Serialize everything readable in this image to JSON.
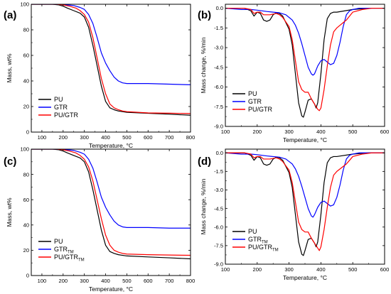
{
  "chart_data": [
    {
      "panel": "(a)",
      "type": "line",
      "xlabel": "Temperature, °C",
      "ylabel": "Mass, wt%",
      "xlim": [
        50,
        800
      ],
      "ylim": [
        0,
        100
      ],
      "xticks": [
        100,
        200,
        300,
        400,
        500,
        600,
        700,
        800
      ],
      "yticks": [
        0,
        20,
        40,
        60,
        80,
        100
      ],
      "xtick_labels": [
        "100",
        "200",
        "300",
        "400",
        "500",
        "600",
        "700",
        "800"
      ],
      "ytick_labels": [
        "0",
        "20",
        "40",
        "60",
        "80",
        "100"
      ],
      "legend_position": "bottom-left",
      "legend": [
        {
          "label": "PU",
          "sub": ""
        },
        {
          "label": "GTR",
          "sub": ""
        },
        {
          "label": "PU/GTR",
          "sub": ""
        }
      ],
      "series": [
        {
          "name": "PU",
          "color": "#000000",
          "x": [
            50,
            150,
            180,
            200,
            220,
            250,
            280,
            300,
            320,
            340,
            360,
            380,
            400,
            420,
            440,
            460,
            500,
            600,
            700,
            800
          ],
          "y": [
            100,
            100,
            99.5,
            98.5,
            97,
            95,
            93,
            90,
            82,
            68,
            52,
            36,
            24,
            19,
            17.5,
            16.5,
            15.5,
            14.7,
            14,
            13.2
          ]
        },
        {
          "name": "GTR",
          "color": "#0000ff",
          "x": [
            50,
            180,
            220,
            250,
            280,
            300,
            320,
            340,
            360,
            380,
            400,
            420,
            440,
            460,
            480,
            500,
            600,
            700,
            800
          ],
          "y": [
            100,
            100,
            99.5,
            99,
            97.5,
            96,
            92,
            85,
            74,
            62,
            54,
            48,
            43,
            40,
            38.5,
            38,
            38,
            37.5,
            37
          ]
        },
        {
          "name": "PU/GTR",
          "color": "#ff0000",
          "x": [
            50,
            170,
            200,
            230,
            260,
            280,
            300,
            320,
            340,
            360,
            380,
            400,
            420,
            440,
            460,
            480,
            500,
            600,
            700,
            800
          ],
          "y": [
            100,
            100,
            99.5,
            98.5,
            97,
            95,
            92,
            86,
            74,
            58,
            42,
            30,
            22,
            19,
            17.5,
            16.5,
            16,
            15,
            14.8,
            14.5
          ]
        }
      ]
    },
    {
      "panel": "(b)",
      "type": "line",
      "xlabel": "Temperature, °C",
      "ylabel": "Mass change, %/min",
      "xlim": [
        100,
        600
      ],
      "ylim": [
        -9.0,
        0.3
      ],
      "xticks": [
        100,
        200,
        300,
        400,
        500,
        600
      ],
      "yticks": [
        0.0,
        -1.5,
        -3.0,
        -4.5,
        -6.0,
        -7.5,
        -9.0
      ],
      "xtick_labels": [
        "100",
        "200",
        "300",
        "400",
        "500",
        "600"
      ],
      "ytick_labels": [
        "0.0",
        "-1.5",
        "-3.0",
        "-4.5",
        "-6.0",
        "-7.5",
        "-9.0"
      ],
      "legend_position": "bottom-left",
      "legend": [
        {
          "label": "PU",
          "sub": ""
        },
        {
          "label": "GTR",
          "sub": ""
        },
        {
          "label": "PU/GTR",
          "sub": ""
        }
      ],
      "series": [
        {
          "name": "PU",
          "color": "#000000",
          "x": [
            100,
            160,
            180,
            190,
            200,
            210,
            220,
            230,
            240,
            250,
            260,
            270,
            280,
            300,
            310,
            320,
            330,
            340,
            345,
            350,
            360,
            370,
            380,
            385,
            390,
            400,
            410,
            420,
            430,
            440,
            450,
            500,
            550,
            600
          ],
          "y": [
            0,
            0,
            -0.2,
            -0.6,
            -0.3,
            -0.4,
            -0.9,
            -1.0,
            -0.9,
            -0.5,
            -0.35,
            -0.4,
            -0.6,
            -1.6,
            -2.8,
            -5.0,
            -7.2,
            -8.2,
            -8.3,
            -7.9,
            -7.0,
            -6.9,
            -7.3,
            -7.6,
            -7.2,
            -5.0,
            -2.4,
            -0.8,
            -0.4,
            -0.3,
            -0.3,
            -0.1,
            0,
            0
          ]
        },
        {
          "name": "GTR",
          "color": "#0000ff",
          "x": [
            100,
            150,
            180,
            200,
            230,
            250,
            270,
            290,
            300,
            310,
            320,
            330,
            340,
            350,
            360,
            370,
            375,
            380,
            390,
            400,
            410,
            420,
            430,
            440,
            450,
            460,
            470,
            480,
            490,
            500,
            520,
            550,
            600
          ],
          "y": [
            0,
            -0.1,
            -0.1,
            -0.15,
            -0.25,
            -0.3,
            -0.35,
            -0.5,
            -0.7,
            -0.9,
            -1.3,
            -1.9,
            -2.7,
            -3.6,
            -4.5,
            -5.0,
            -5.1,
            -5.0,
            -4.4,
            -4.0,
            -3.9,
            -4.1,
            -4.3,
            -4.2,
            -3.6,
            -2.6,
            -1.4,
            -0.5,
            -0.2,
            -0.1,
            0,
            0,
            0
          ]
        },
        {
          "name": "PU/GTR",
          "color": "#ff0000",
          "x": [
            100,
            160,
            180,
            190,
            200,
            210,
            220,
            240,
            260,
            270,
            280,
            300,
            310,
            320,
            330,
            340,
            350,
            360,
            370,
            380,
            390,
            395,
            400,
            410,
            420,
            430,
            440,
            450,
            460,
            470,
            480,
            490,
            500,
            530,
            560,
            600
          ],
          "y": [
            0,
            0,
            -0.1,
            -0.4,
            -0.3,
            -0.3,
            -0.5,
            -0.5,
            -0.4,
            -0.5,
            -0.7,
            -1.4,
            -2.4,
            -4.0,
            -5.6,
            -6.2,
            -6.4,
            -6.4,
            -6.9,
            -7.3,
            -7.7,
            -7.8,
            -7.6,
            -6.2,
            -4.4,
            -2.8,
            -1.8,
            -1.5,
            -1.3,
            -1.1,
            -0.9,
            -0.6,
            -0.3,
            -0.1,
            0,
            0
          ]
        }
      ]
    },
    {
      "panel": "(c)",
      "type": "line",
      "xlabel": "Temperature, °C",
      "ylabel": "Mass, wt%",
      "xlim": [
        50,
        800
      ],
      "ylim": [
        0,
        100
      ],
      "xticks": [
        100,
        200,
        300,
        400,
        500,
        600,
        700,
        800
      ],
      "yticks": [
        0,
        20,
        40,
        60,
        80,
        100
      ],
      "xtick_labels": [
        "100",
        "200",
        "300",
        "400",
        "500",
        "600",
        "700",
        "800"
      ],
      "ytick_labels": [
        "0",
        "20",
        "40",
        "60",
        "80",
        "100"
      ],
      "legend_position": "bottom-left",
      "legend": [
        {
          "label": "PU",
          "sub": ""
        },
        {
          "label": "GTR",
          "sub": "TM"
        },
        {
          "label": "PU/GTR",
          "sub": "TM"
        }
      ],
      "series": [
        {
          "name": "PU",
          "color": "#000000",
          "x": [
            50,
            150,
            180,
            200,
            220,
            250,
            280,
            300,
            320,
            340,
            360,
            380,
            400,
            420,
            440,
            460,
            500,
            600,
            700,
            800
          ],
          "y": [
            100,
            100,
            99.5,
            98.5,
            97,
            95,
            93,
            90,
            82,
            68,
            52,
            36,
            24,
            19,
            17.5,
            16.5,
            15.5,
            14.7,
            14,
            13.2
          ]
        },
        {
          "name": "GTR",
          "color": "#0000ff",
          "x": [
            50,
            180,
            220,
            250,
            280,
            300,
            320,
            340,
            360,
            380,
            400,
            420,
            440,
            460,
            480,
            500,
            600,
            700,
            800
          ],
          "y": [
            100,
            100,
            99.5,
            99,
            97.5,
            96,
            92,
            85,
            74,
            62,
            54,
            48,
            43,
            40,
            38.5,
            38,
            38,
            37.5,
            37.5
          ]
        },
        {
          "name": "PU/GTR",
          "color": "#ff0000",
          "x": [
            50,
            170,
            200,
            230,
            260,
            280,
            300,
            320,
            340,
            360,
            380,
            400,
            420,
            440,
            460,
            480,
            500,
            600,
            700,
            800
          ],
          "y": [
            100,
            100,
            99.5,
            98.5,
            97,
            95,
            92,
            86,
            75,
            60,
            45,
            32,
            24,
            20,
            18.5,
            17.5,
            17,
            16.5,
            16.2,
            16
          ]
        }
      ]
    },
    {
      "panel": "(d)",
      "type": "line",
      "xlabel": "Temperature, °C",
      "ylabel": "Mass change, %/min",
      "xlim": [
        100,
        600
      ],
      "ylim": [
        -9.0,
        0.3
      ],
      "xticks": [
        100,
        200,
        300,
        400,
        500,
        600
      ],
      "yticks": [
        0.0,
        -1.5,
        -3.0,
        -4.5,
        -6.0,
        -7.5,
        -9.0
      ],
      "xtick_labels": [
        "100",
        "200",
        "300",
        "400",
        "500",
        "600"
      ],
      "ytick_labels": [
        "0.0",
        "-1.5",
        "-3.0",
        "-4.5",
        "-6.0",
        "-7.5",
        "-9.0"
      ],
      "legend_position": "bottom-left",
      "legend": [
        {
          "label": "PU",
          "sub": ""
        },
        {
          "label": "GTR",
          "sub": "TM"
        },
        {
          "label": "PU/GTR",
          "sub": "TM"
        }
      ],
      "series": [
        {
          "name": "PU",
          "color": "#000000",
          "x": [
            100,
            160,
            180,
            190,
            200,
            210,
            220,
            230,
            240,
            250,
            260,
            270,
            280,
            300,
            310,
            320,
            330,
            340,
            345,
            350,
            360,
            370,
            380,
            385,
            390,
            400,
            410,
            420,
            430,
            440,
            450,
            500,
            550,
            600
          ],
          "y": [
            0,
            0,
            -0.2,
            -0.6,
            -0.3,
            -0.4,
            -0.9,
            -1.0,
            -0.9,
            -0.5,
            -0.35,
            -0.4,
            -0.6,
            -1.6,
            -2.8,
            -5.0,
            -7.2,
            -8.2,
            -8.3,
            -7.9,
            -7.0,
            -6.9,
            -7.3,
            -7.6,
            -7.2,
            -5.0,
            -2.4,
            -0.8,
            -0.4,
            -0.3,
            -0.3,
            -0.1,
            0,
            0
          ]
        },
        {
          "name": "GTR",
          "color": "#0000ff",
          "x": [
            100,
            150,
            180,
            200,
            230,
            250,
            270,
            290,
            300,
            310,
            320,
            330,
            340,
            350,
            360,
            370,
            375,
            380,
            390,
            400,
            410,
            420,
            430,
            440,
            450,
            460,
            470,
            480,
            490,
            500,
            520,
            550,
            600
          ],
          "y": [
            0,
            -0.1,
            -0.1,
            -0.15,
            -0.25,
            -0.3,
            -0.35,
            -0.5,
            -0.7,
            -0.9,
            -1.3,
            -1.9,
            -2.7,
            -3.6,
            -4.5,
            -5.1,
            -5.2,
            -5.0,
            -4.4,
            -4.0,
            -3.9,
            -4.1,
            -4.3,
            -4.2,
            -3.6,
            -2.6,
            -1.4,
            -0.5,
            -0.2,
            -0.1,
            0,
            0,
            0
          ]
        },
        {
          "name": "PU/GTR",
          "color": "#ff0000",
          "x": [
            100,
            160,
            180,
            190,
            200,
            210,
            220,
            240,
            260,
            270,
            280,
            300,
            310,
            320,
            330,
            340,
            350,
            360,
            370,
            380,
            390,
            395,
            400,
            410,
            420,
            430,
            440,
            450,
            460,
            470,
            480,
            490,
            500,
            530,
            560,
            600
          ],
          "y": [
            0,
            0,
            -0.1,
            -0.4,
            -0.3,
            -0.3,
            -0.5,
            -0.5,
            -0.4,
            -0.5,
            -0.7,
            -1.4,
            -2.4,
            -4.0,
            -5.6,
            -6.2,
            -6.4,
            -6.4,
            -6.9,
            -7.3,
            -7.7,
            -7.9,
            -7.6,
            -6.2,
            -4.4,
            -2.8,
            -1.8,
            -1.5,
            -1.3,
            -1.1,
            -0.9,
            -0.6,
            -0.3,
            -0.1,
            0,
            0
          ]
        }
      ]
    }
  ]
}
